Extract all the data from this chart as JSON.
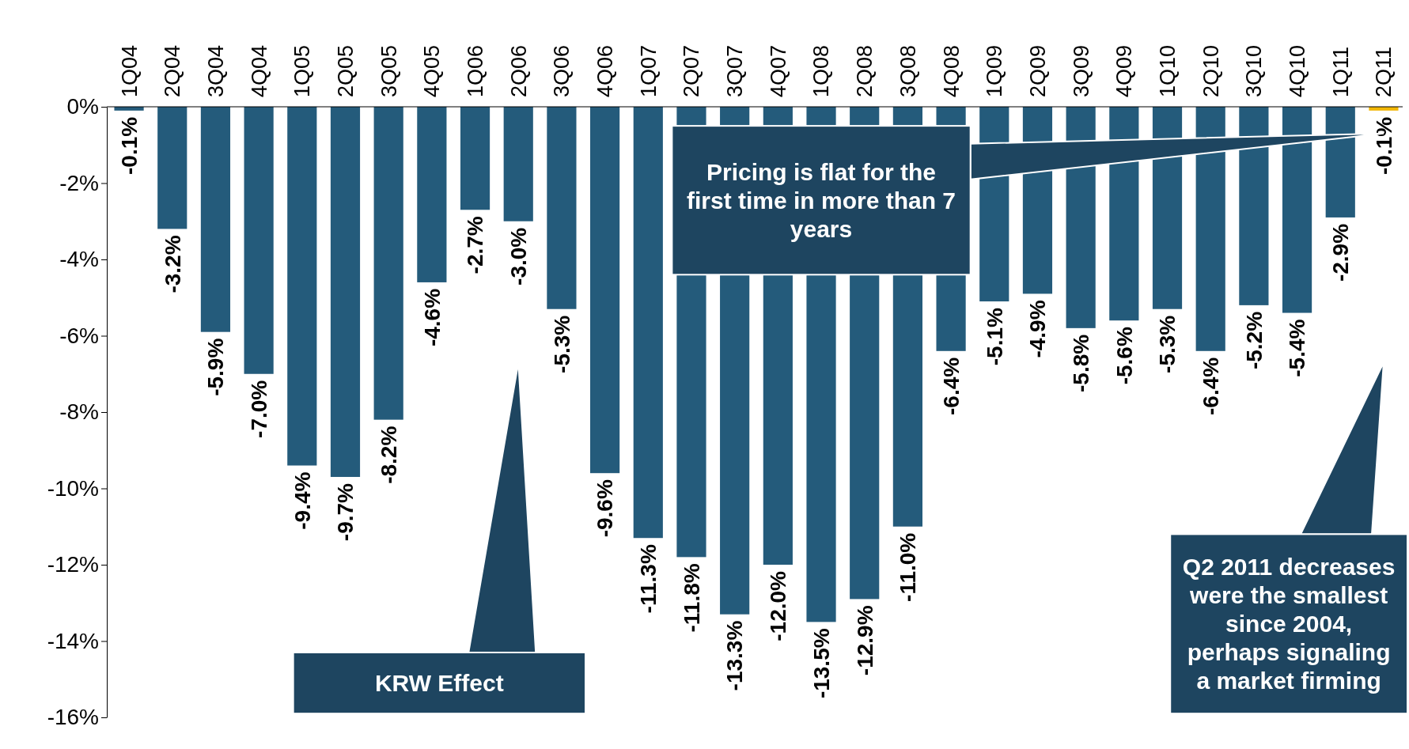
{
  "chart_data": {
    "type": "bar",
    "categories": [
      "1Q04",
      "2Q04",
      "3Q04",
      "4Q04",
      "1Q05",
      "2Q05",
      "3Q05",
      "4Q05",
      "1Q06",
      "2Q06",
      "3Q06",
      "4Q06",
      "1Q07",
      "2Q07",
      "3Q07",
      "4Q07",
      "1Q08",
      "2Q08",
      "3Q08",
      "4Q08",
      "1Q09",
      "2Q09",
      "3Q09",
      "4Q09",
      "1Q10",
      "2Q10",
      "3Q10",
      "4Q10",
      "1Q11",
      "2Q11"
    ],
    "values": [
      -0.1,
      -3.2,
      -5.9,
      -7.0,
      -9.4,
      -9.7,
      -8.2,
      -4.6,
      -2.7,
      -3.0,
      -5.3,
      -9.6,
      -11.3,
      -11.8,
      -13.3,
      -12.0,
      -13.5,
      -12.9,
      -11.0,
      -6.4,
      -5.1,
      -4.9,
      -5.8,
      -5.6,
      -5.3,
      -6.4,
      -5.2,
      -5.4,
      -2.9,
      -0.1
    ],
    "colors": [
      "#245b7b",
      "#245b7b",
      "#245b7b",
      "#245b7b",
      "#245b7b",
      "#245b7b",
      "#245b7b",
      "#245b7b",
      "#245b7b",
      "#245b7b",
      "#245b7b",
      "#245b7b",
      "#245b7b",
      "#245b7b",
      "#245b7b",
      "#245b7b",
      "#245b7b",
      "#245b7b",
      "#245b7b",
      "#245b7b",
      "#245b7b",
      "#245b7b",
      "#245b7b",
      "#245b7b",
      "#245b7b",
      "#245b7b",
      "#245b7b",
      "#245b7b",
      "#245b7b",
      "#f2b705"
    ],
    "value_labels": [
      "-0.1%",
      "-3.2%",
      "-5.9%",
      "-7.0%",
      "-9.4%",
      "-9.7%",
      "-8.2%",
      "-4.6%",
      "-2.7%",
      "-3.0%",
      "-5.3%",
      "-9.6%",
      "-11.3%",
      "-11.8%",
      "-13.3%",
      "-12.0%",
      "-13.5%",
      "-12.9%",
      "-11.0%",
      "-6.4%",
      "-5.1%",
      "-4.9%",
      "-5.8%",
      "-5.6%",
      "-5.3%",
      "-6.4%",
      "-5.2%",
      "-5.4%",
      "-2.9%",
      "-0.1%"
    ],
    "ylim": [
      -16,
      0
    ],
    "yticks": [
      {
        "value": 0,
        "label": "0%"
      },
      {
        "value": -2,
        "label": "-2%"
      },
      {
        "value": -4,
        "label": "-4%"
      },
      {
        "value": -6,
        "label": "-6%"
      },
      {
        "value": -8,
        "label": "-8%"
      },
      {
        "value": -10,
        "label": "-10%"
      },
      {
        "value": -12,
        "label": "-12%"
      },
      {
        "value": -14,
        "label": "-14%"
      },
      {
        "value": -16,
        "label": "-16%"
      }
    ],
    "annotations": [
      "Pricing is flat for the first time in more than 7 years",
      "KRW Effect",
      "Q2 2011 decreases were the smallest since 2004, perhaps signaling a market firming"
    ]
  }
}
